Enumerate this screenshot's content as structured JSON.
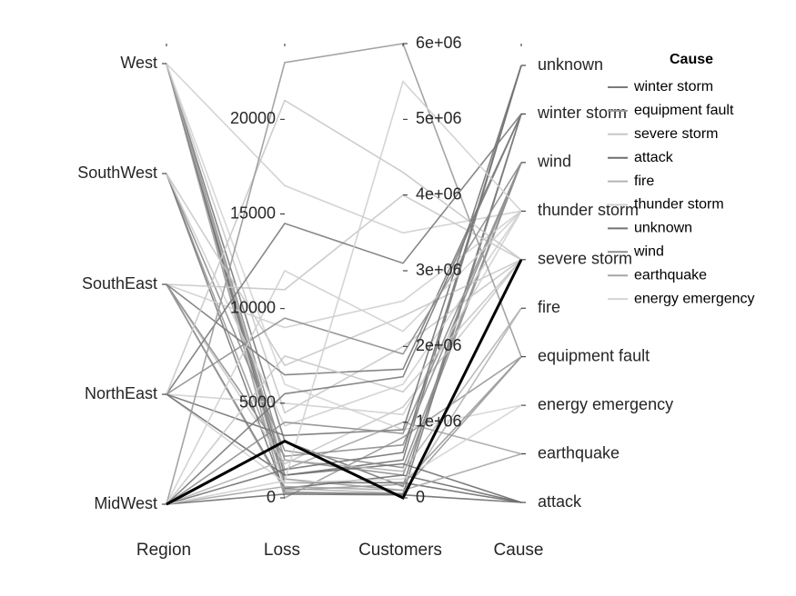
{
  "chart_data": {
    "type": "parallel-coordinates",
    "dimensions": [
      "Region",
      "Loss",
      "Customers",
      "Cause"
    ],
    "axes": {
      "Region": {
        "type": "categorical",
        "categories": [
          "MidWest",
          "NorthEast",
          "SouthEast",
          "SouthWest",
          "West"
        ]
      },
      "Loss": {
        "type": "numeric",
        "range": [
          0,
          24000
        ],
        "ticks": [
          0,
          5000,
          10000,
          15000,
          20000
        ],
        "tick_labels": [
          "0",
          "5000",
          "10000",
          "15000",
          "20000"
        ]
      },
      "Customers": {
        "type": "numeric",
        "range": [
          0,
          6000000
        ],
        "ticks": [
          0,
          1000000,
          2000000,
          3000000,
          4000000,
          5000000,
          6000000
        ],
        "tick_labels": [
          "0",
          "1e+06",
          "2e+06",
          "3e+06",
          "4e+06",
          "5e+06",
          "6e+06"
        ]
      },
      "Cause": {
        "type": "categorical",
        "categories": [
          "attack",
          "earthquake",
          "energy emergency",
          "equipment fault",
          "fire",
          "severe storm",
          "thunder storm",
          "wind",
          "winter storm",
          "unknown"
        ]
      }
    },
    "legend": {
      "title": "Cause",
      "placement": "right",
      "entries": [
        "winter storm",
        "equipment fault",
        "severe storm",
        "attack",
        "fire",
        "thunder storm",
        "unknown",
        "wind",
        "earthquake",
        "energy emergency"
      ],
      "colors": [
        "#7a7a7a",
        "#9a9a9a",
        "#c8c8c8",
        "#6e6e6e",
        "#b4b4b4",
        "#cfcfcf",
        "#747474",
        "#8e8e8e",
        "#a6a6a6",
        "#d4d4d4"
      ]
    },
    "highlighted_record": {
      "Region": "MidWest",
      "Loss": 3000,
      "Customers": 0,
      "Cause": "severe storm"
    },
    "records": [
      {
        "Region": "West",
        "Loss": 3000,
        "Customers": 150000,
        "Cause": "winter storm"
      },
      {
        "Region": "West",
        "Loss": 0,
        "Customers": 800000,
        "Cause": "equipment fault"
      },
      {
        "Region": "West",
        "Loss": 16500,
        "Customers": 3500000,
        "Cause": "thunder storm"
      },
      {
        "Region": "West",
        "Loss": 500,
        "Customers": 60000,
        "Cause": "fire"
      },
      {
        "Region": "West",
        "Loss": 2000,
        "Customers": 300000,
        "Cause": "wind"
      },
      {
        "Region": "West",
        "Loss": 1200,
        "Customers": 500000,
        "Cause": "unknown"
      },
      {
        "Region": "West",
        "Loss": 800,
        "Customers": 200000,
        "Cause": "attack"
      },
      {
        "Region": "West",
        "Loss": 4500,
        "Customers": 2000000,
        "Cause": "severe storm"
      },
      {
        "Region": "West",
        "Loss": 1500,
        "Customers": 1000000,
        "Cause": "earthquake"
      },
      {
        "Region": "West",
        "Loss": 6000,
        "Customers": 900000,
        "Cause": "energy emergency"
      },
      {
        "Region": "SouthWest",
        "Loss": 2500,
        "Customers": 400000,
        "Cause": "wind"
      },
      {
        "Region": "SouthWest",
        "Loss": 1000,
        "Customers": 100000,
        "Cause": "equipment fault"
      },
      {
        "Region": "SouthWest",
        "Loss": 7000,
        "Customers": 2400000,
        "Cause": "severe storm"
      },
      {
        "Region": "SouthWest",
        "Loss": 300,
        "Customers": 50000,
        "Cause": "winter storm"
      },
      {
        "Region": "SouthWest",
        "Loss": 3800,
        "Customers": 1500000,
        "Cause": "thunder storm"
      },
      {
        "Region": "SouthEast",
        "Loss": 9000,
        "Customers": 2600000,
        "Cause": "thunder storm"
      },
      {
        "Region": "SouthEast",
        "Loss": 1800,
        "Customers": 1200000,
        "Cause": "severe storm"
      },
      {
        "Region": "SouthEast",
        "Loss": 500,
        "Customers": 300000,
        "Cause": "attack"
      },
      {
        "Region": "SouthEast",
        "Loss": 11000,
        "Customers": 4000000,
        "Cause": "severe storm"
      },
      {
        "Region": "SouthEast",
        "Loss": 2200,
        "Customers": 700000,
        "Cause": "wind"
      },
      {
        "Region": "SouthEast",
        "Loss": 400,
        "Customers": 180000,
        "Cause": "equipment fault"
      },
      {
        "Region": "SouthEast",
        "Loss": 6500,
        "Customers": 1700000,
        "Cause": "winter storm"
      },
      {
        "Region": "NorthEast",
        "Loss": 14500,
        "Customers": 3100000,
        "Cause": "winter storm"
      },
      {
        "Region": "NorthEast",
        "Loss": 5000,
        "Customers": 1100000,
        "Cause": "thunder storm"
      },
      {
        "Region": "NorthEast",
        "Loss": 800,
        "Customers": 250000,
        "Cause": "energy emergency"
      },
      {
        "Region": "NorthEast",
        "Loss": 3300,
        "Customers": 900000,
        "Cause": "unknown"
      },
      {
        "Region": "NorthEast",
        "Loss": 21000,
        "Customers": 4300000,
        "Cause": "severe storm"
      },
      {
        "Region": "NorthEast",
        "Loss": 1200,
        "Customers": 450000,
        "Cause": "attack"
      },
      {
        "Region": "NorthEast",
        "Loss": 9500,
        "Customers": 1900000,
        "Cause": "wind"
      },
      {
        "Region": "MidWest",
        "Loss": 23000,
        "Customers": 6000000,
        "Cause": "equipment fault"
      },
      {
        "Region": "MidWest",
        "Loss": 4000,
        "Customers": 850000,
        "Cause": "wind"
      },
      {
        "Region": "MidWest",
        "Loss": 600,
        "Customers": 100000,
        "Cause": "earthquake"
      },
      {
        "Region": "MidWest",
        "Loss": 7500,
        "Customers": 1400000,
        "Cause": "severe storm"
      },
      {
        "Region": "MidWest",
        "Loss": 2000,
        "Customers": 350000,
        "Cause": "fire"
      },
      {
        "Region": "MidWest",
        "Loss": 1500,
        "Customers": 600000,
        "Cause": "unknown"
      },
      {
        "Region": "MidWest",
        "Loss": 200,
        "Customers": 40000,
        "Cause": "attack"
      },
      {
        "Region": "MidWest",
        "Loss": 12000,
        "Customers": 2200000,
        "Cause": "thunder storm"
      },
      {
        "Region": "MidWest",
        "Loss": 5500,
        "Customers": 1600000,
        "Cause": "winter storm"
      },
      {
        "Region": "MidWest",
        "Loss": 900,
        "Customers": 5500000,
        "Cause": "thunder storm"
      }
    ],
    "grid": false
  }
}
